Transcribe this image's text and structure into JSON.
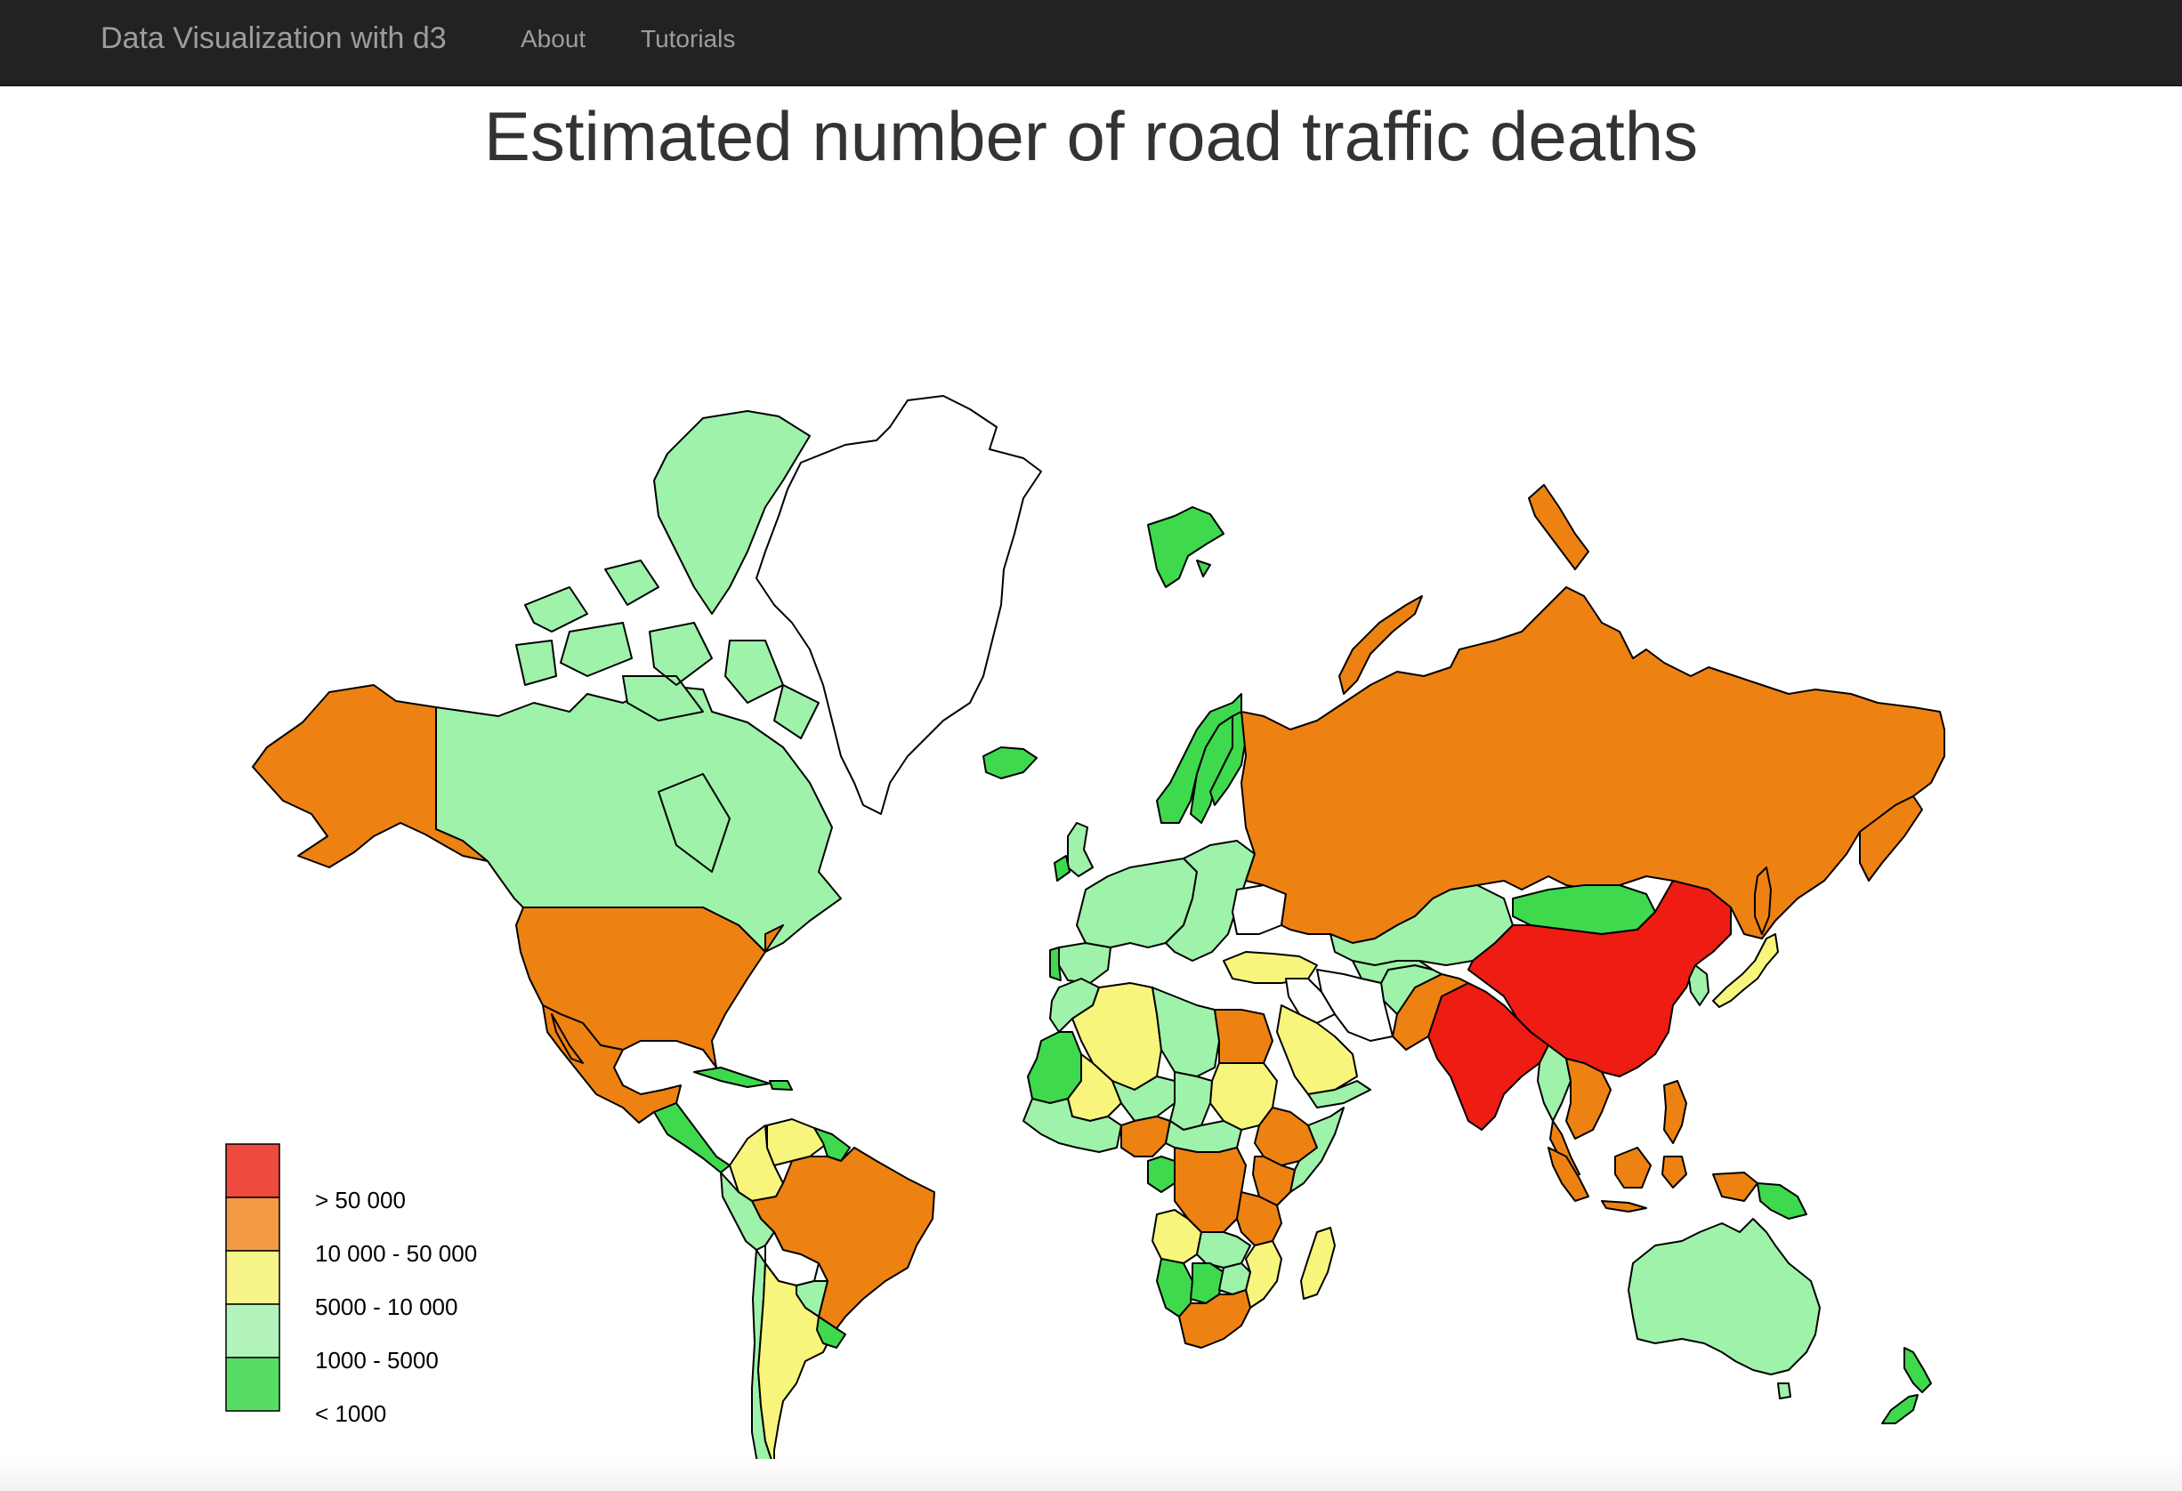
{
  "navbar": {
    "brand": "Data Visualization with d3",
    "links": [
      "About",
      "Tutorials"
    ]
  },
  "page": {
    "title": "Estimated number of road traffic deaths"
  },
  "legend": [
    {
      "label": "> 50 000",
      "color": "#ef4a3f",
      "category": "gt50000"
    },
    {
      "label": "10 000 - 50 000",
      "color": "#f39a45",
      "category": "10000-50000"
    },
    {
      "label": "5000 - 10 000",
      "color": "#f7f589",
      "category": "5000-10000"
    },
    {
      "label": "1000 - 5000",
      "color": "#b2f4bb",
      "category": "1000-5000"
    },
    {
      "label": "< 1000",
      "color": "#58dd64",
      "category": "lt1000"
    }
  ],
  "map_colors": {
    "gt50000": "#ee1c12",
    "10000-50000": "#ed8212",
    "5000-10000": "#f8f57c",
    "1000-5000": "#9ef2a9",
    "lt1000": "#3fd94e",
    "no_data": "#ffffff"
  },
  "countries": [
    {
      "name": "Greenland",
      "category": "no_data"
    },
    {
      "name": "Canada",
      "category": "1000-5000"
    },
    {
      "name": "Alaska",
      "category": "10000-50000"
    },
    {
      "name": "United States",
      "category": "10000-50000"
    },
    {
      "name": "Mexico",
      "category": "10000-50000"
    },
    {
      "name": "Central America",
      "category": "lt1000"
    },
    {
      "name": "Cuba",
      "category": "lt1000"
    },
    {
      "name": "Colombia",
      "category": "5000-10000"
    },
    {
      "name": "Venezuela",
      "category": "5000-10000"
    },
    {
      "name": "Guyana",
      "category": "lt1000"
    },
    {
      "name": "Brazil",
      "category": "10000-50000"
    },
    {
      "name": "Peru",
      "category": "1000-5000"
    },
    {
      "name": "Bolivia",
      "category": "no_data"
    },
    {
      "name": "Chile",
      "category": "1000-5000"
    },
    {
      "name": "Argentina",
      "category": "5000-10000"
    },
    {
      "name": "Paraguay",
      "category": "1000-5000"
    },
    {
      "name": "Uruguay",
      "category": "lt1000"
    },
    {
      "name": "Iceland",
      "category": "lt1000"
    },
    {
      "name": "Svalbard",
      "category": "lt1000"
    },
    {
      "name": "Norway",
      "category": "lt1000"
    },
    {
      "name": "Sweden",
      "category": "lt1000"
    },
    {
      "name": "Finland",
      "category": "lt1000"
    },
    {
      "name": "United Kingdom",
      "category": "1000-5000"
    },
    {
      "name": "Ireland",
      "category": "lt1000"
    },
    {
      "name": "Western Europe",
      "category": "1000-5000"
    },
    {
      "name": "Spain",
      "category": "1000-5000"
    },
    {
      "name": "Portugal",
      "category": "lt1000"
    },
    {
      "name": "Eastern Europe",
      "category": "1000-5000"
    },
    {
      "name": "Ukraine",
      "category": "no_data"
    },
    {
      "name": "Turkey",
      "category": "5000-10000"
    },
    {
      "name": "Russia",
      "category": "10000-50000"
    },
    {
      "name": "Novaya Zemlya",
      "category": "10000-50000"
    },
    {
      "name": "Severnaya Zemlya",
      "category": "10000-50000"
    },
    {
      "name": "Kazakhstan",
      "category": "1000-5000"
    },
    {
      "name": "Mongolia",
      "category": "lt1000"
    },
    {
      "name": "China",
      "category": "gt50000"
    },
    {
      "name": "India",
      "category": "gt50000"
    },
    {
      "name": "Pakistan",
      "category": "10000-50000"
    },
    {
      "name": "Afghanistan",
      "category": "1000-5000"
    },
    {
      "name": "Iran",
      "category": "no_data"
    },
    {
      "name": "Central Asia",
      "category": "1000-5000"
    },
    {
      "name": "Japan",
      "category": "5000-10000"
    },
    {
      "name": "Korea",
      "category": "1000-5000"
    },
    {
      "name": "Sakhalin",
      "category": "10000-50000"
    },
    {
      "name": "Southeast Asia",
      "category": "10000-50000"
    },
    {
      "name": "Myanmar",
      "category": "1000-5000"
    },
    {
      "name": "Philippines",
      "category": "10000-50000"
    },
    {
      "name": "Indonesia",
      "category": "10000-50000"
    },
    {
      "name": "Papua New Guinea",
      "category": "lt1000"
    },
    {
      "name": "Australia",
      "category": "1000-5000"
    },
    {
      "name": "New Zealand",
      "category": "lt1000"
    },
    {
      "name": "Morocco",
      "category": "1000-5000"
    },
    {
      "name": "Algeria",
      "category": "5000-10000"
    },
    {
      "name": "Libya",
      "category": "1000-5000"
    },
    {
      "name": "Egypt",
      "category": "10000-50000"
    },
    {
      "name": "Sudan",
      "category": "5000-10000"
    },
    {
      "name": "Saudi Arabia",
      "category": "5000-10000"
    },
    {
      "name": "Iraq",
      "category": "no_data"
    },
    {
      "name": "Yemen",
      "category": "1000-5000"
    },
    {
      "name": "Mauritania",
      "category": "lt1000"
    },
    {
      "name": "Mali",
      "category": "5000-10000"
    },
    {
      "name": "Niger",
      "category": "1000-5000"
    },
    {
      "name": "Chad",
      "category": "1000-5000"
    },
    {
      "name": "West Africa coast",
      "category": "1000-5000"
    },
    {
      "name": "Nigeria",
      "category": "10000-50000"
    },
    {
      "name": "Ethiopia",
      "category": "10000-50000"
    },
    {
      "name": "Somalia",
      "category": "1000-5000"
    },
    {
      "name": "Central African Republic",
      "category": "1000-5000"
    },
    {
      "name": "DR Congo",
      "category": "10000-50000"
    },
    {
      "name": "Gabon",
      "category": "lt1000"
    },
    {
      "name": "Kenya",
      "category": "10000-50000"
    },
    {
      "name": "Tanzania",
      "category": "10000-50000"
    },
    {
      "name": "Angola",
      "category": "5000-10000"
    },
    {
      "name": "Zambia",
      "category": "1000-5000"
    },
    {
      "name": "Mozambique",
      "category": "5000-10000"
    },
    {
      "name": "Namibia",
      "category": "lt1000"
    },
    {
      "name": "Botswana",
      "category": "lt1000"
    },
    {
      "name": "Zimbabwe",
      "category": "1000-5000"
    },
    {
      "name": "South Africa",
      "category": "10000-50000"
    },
    {
      "name": "Madagascar",
      "category": "5000-10000"
    }
  ]
}
